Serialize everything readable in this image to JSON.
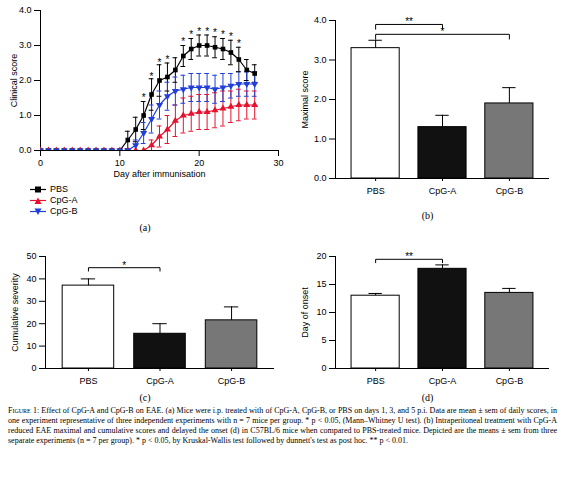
{
  "chart_data": [
    {
      "type": "line",
      "panel_label": "(a)",
      "x_label": "Day after immunisation",
      "y_label": "Clinical score",
      "x": [
        0,
        1,
        2,
        3,
        4,
        5,
        6,
        7,
        8,
        9,
        10,
        11,
        12,
        13,
        14,
        15,
        16,
        17,
        18,
        19,
        20,
        21,
        22,
        23,
        24,
        25,
        26,
        27
      ],
      "series": [
        {
          "name": "PBS",
          "color": "#000000",
          "marker": "square",
          "values": [
            0,
            0,
            0,
            0,
            0,
            0,
            0,
            0,
            0,
            0,
            0,
            0.3,
            0.6,
            1.0,
            1.6,
            2.0,
            2.1,
            2.3,
            2.7,
            2.9,
            3.0,
            3.0,
            2.95,
            2.9,
            2.8,
            2.6,
            2.3,
            2.2
          ],
          "errors": [
            0,
            0,
            0,
            0,
            0,
            0,
            0,
            0,
            0,
            0,
            0,
            0.25,
            0.35,
            0.4,
            0.45,
            0.45,
            0.4,
            0.35,
            0.3,
            0.3,
            0.3,
            0.3,
            0.3,
            0.3,
            0.35,
            0.35,
            0.3,
            0.25
          ]
        },
        {
          "name": "CpG-A",
          "color": "#e8112d",
          "marker": "triangle",
          "values": [
            0,
            0,
            0,
            0,
            0,
            0,
            0,
            0,
            0,
            0,
            0,
            0,
            0,
            0,
            0.15,
            0.4,
            0.6,
            0.85,
            1.0,
            1.05,
            1.1,
            1.1,
            1.15,
            1.2,
            1.25,
            1.3,
            1.3,
            1.3
          ],
          "errors": [
            0,
            0,
            0,
            0,
            0,
            0,
            0,
            0,
            0,
            0,
            0,
            0,
            0,
            0,
            0.15,
            0.3,
            0.4,
            0.45,
            0.5,
            0.5,
            0.5,
            0.5,
            0.5,
            0.5,
            0.45,
            0.45,
            0.4,
            0.4
          ]
        },
        {
          "name": "CpG-B",
          "color": "#1f3fd8",
          "marker": "triangle-down",
          "values": [
            0,
            0,
            0,
            0,
            0,
            0,
            0,
            0,
            0,
            0,
            0,
            0,
            0.15,
            0.5,
            0.9,
            1.3,
            1.55,
            1.7,
            1.75,
            1.8,
            1.8,
            1.8,
            1.75,
            1.8,
            1.85,
            1.9,
            1.9,
            1.9
          ],
          "errors": [
            0,
            0,
            0,
            0,
            0,
            0,
            0,
            0,
            0,
            0,
            0,
            0,
            0.15,
            0.3,
            0.4,
            0.4,
            0.4,
            0.4,
            0.4,
            0.4,
            0.4,
            0.4,
            0.4,
            0.4,
            0.35,
            0.35,
            0.35,
            0.35
          ]
        }
      ],
      "annotations": [
        {
          "x": 13,
          "y": 1.5,
          "text": "*"
        },
        {
          "x": 14,
          "y": 2.1,
          "text": "*"
        },
        {
          "x": 15,
          "y": 2.5,
          "text": "*"
        },
        {
          "x": 16,
          "y": 2.6,
          "text": "*"
        },
        {
          "x": 18,
          "y": 3.1,
          "text": "*"
        },
        {
          "x": 19,
          "y": 3.3,
          "text": "*"
        },
        {
          "x": 20,
          "y": 3.4,
          "text": "*"
        },
        {
          "x": 21,
          "y": 3.4,
          "text": "*"
        },
        {
          "x": 22,
          "y": 3.35,
          "text": "*"
        },
        {
          "x": 23,
          "y": 3.3,
          "text": "*"
        },
        {
          "x": 24,
          "y": 3.25,
          "text": "*"
        },
        {
          "x": 25,
          "y": 3.05,
          "text": "*"
        }
      ],
      "xlim": [
        0,
        30
      ],
      "xticks": [
        0,
        10,
        20,
        30
      ],
      "ylim": [
        0,
        4
      ],
      "yticks": [
        0,
        1,
        2,
        3,
        4
      ],
      "legend": "bottom-left",
      "grid": false
    },
    {
      "type": "bar",
      "panel_label": "(b)",
      "y_label": "Maximal score",
      "categories": [
        "PBS",
        "CpG-A",
        "CpG-B"
      ],
      "values": [
        3.3,
        1.3,
        1.9
      ],
      "errors": [
        0.2,
        0.3,
        0.4
      ],
      "colors": [
        "#ffffff",
        "#111111",
        "#777777"
      ],
      "significance": [
        {
          "from": "PBS",
          "to": "CpG-A",
          "y": 3.9,
          "text": "**"
        },
        {
          "from": "PBS",
          "to": "CpG-B",
          "y": 3.65,
          "text": "*"
        }
      ],
      "ylim": [
        0,
        4
      ],
      "yticks": [
        0,
        1,
        2,
        3,
        4
      ],
      "grid": false
    },
    {
      "type": "bar",
      "panel_label": "(c)",
      "y_label": "Cumulative severity",
      "categories": [
        "PBS",
        "CpG-A",
        "CpG-B"
      ],
      "values": [
        37,
        15.5,
        21.5
      ],
      "errors": [
        3,
        4.5,
        6
      ],
      "colors": [
        "#ffffff",
        "#111111",
        "#777777"
      ],
      "significance": [
        {
          "from": "PBS",
          "to": "CpG-A",
          "y": 45,
          "text": "*"
        }
      ],
      "ylim": [
        0,
        50
      ],
      "yticks": [
        0,
        10,
        20,
        30,
        40,
        50
      ],
      "grid": false
    },
    {
      "type": "bar",
      "panel_label": "(d)",
      "y_label": "Day of onset",
      "categories": [
        "PBS",
        "CpG-A",
        "CpG-B"
      ],
      "values": [
        13,
        17.8,
        13.5
      ],
      "errors": [
        0.4,
        0.7,
        0.8
      ],
      "colors": [
        "#ffffff",
        "#111111",
        "#777777"
      ],
      "significance": [
        {
          "from": "PBS",
          "to": "CpG-A",
          "y": 19.5,
          "text": "**"
        }
      ],
      "ylim": [
        0,
        20
      ],
      "yticks": [
        0,
        5,
        10,
        15,
        20
      ],
      "grid": false
    }
  ],
  "caption": {
    "label": "Figure 1:",
    "text": "Effect of CpG-A and CpG-B on EAE. (a) Mice were i.p. treated with of CpG-A, CpG-B, or PBS on days 1, 3, and 5 p.i. Data are mean ± sem of daily scores, in one experiment representative of three independent experiments with n = 7 mice per group. * p < 0.05, (Mann–Whitney U test). (b) Intraperitoneal treatment with CpG-A reduced EAE maximal and cumulative scores and delayed the onset (d) in C57BL/6 mice when compared to PBS-treated mice. Depicted are the means ± sem from three separate experiments (n = 7 per group). * p < 0.05, by Kruskal-Wallis test followed by dunnett's test as post hoc. ** p < 0.01."
  }
}
